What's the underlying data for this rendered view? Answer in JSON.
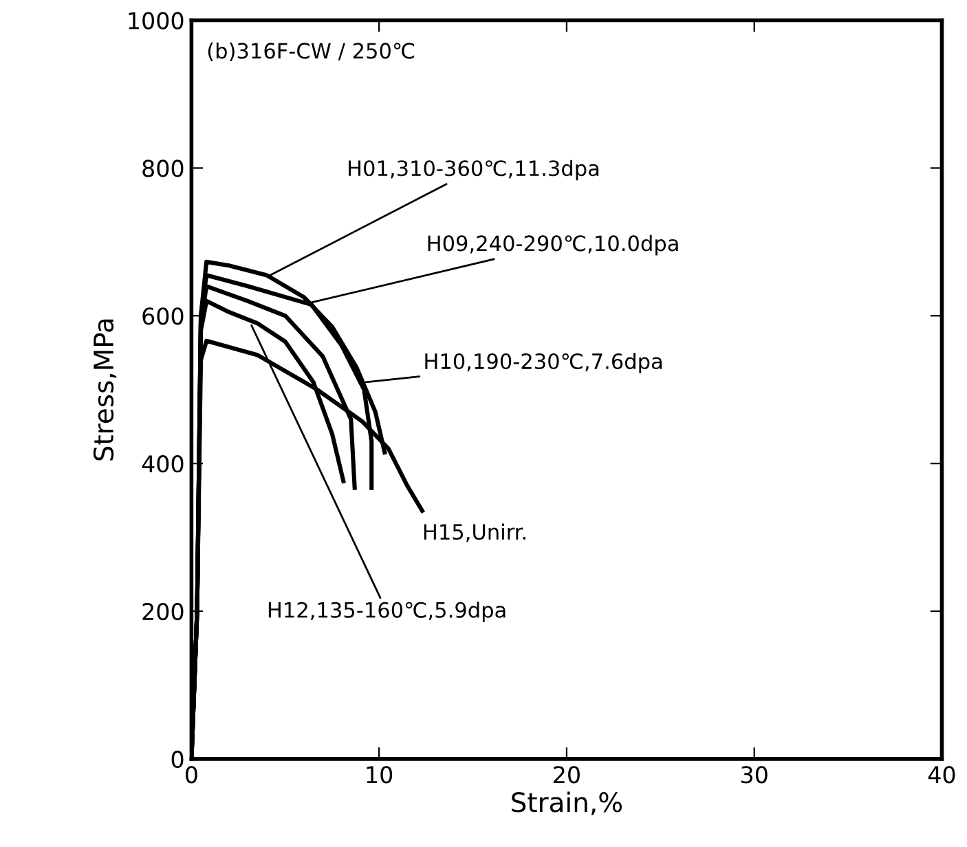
{
  "chart_data": {
    "type": "line",
    "xlabel": "Strain,%",
    "ylabel": "Stress,MPa",
    "xlim": [
      0,
      40
    ],
    "ylim": [
      0,
      1000
    ],
    "xticks": [
      0,
      10,
      20,
      30,
      40
    ],
    "yticks": [
      0,
      200,
      400,
      600,
      800,
      1000
    ],
    "grid": false,
    "legend": false,
    "marker": "none",
    "line_style": "solid",
    "series": [
      {
        "color": "#000000",
        "x": [
          0,
          0.3,
          0.5,
          0.8,
          2,
          4,
          6,
          7.5,
          8.8,
          9.8,
          10.3
        ],
        "values": [
          0,
          200,
          600,
          673,
          668,
          655,
          625,
          585,
          530,
          470,
          415
        ]
      },
      {
        "color": "#000000",
        "x": [
          0,
          0.3,
          0.5,
          0.8,
          3,
          6.4,
          8,
          9.2,
          9.6,
          9.6
        ],
        "values": [
          0,
          200,
          600,
          655,
          640,
          615,
          560,
          500,
          430,
          367
        ]
      },
      {
        "color": "#000000",
        "x": [
          0,
          0.3,
          0.5,
          0.8,
          3,
          5,
          7,
          8.5,
          8.7
        ],
        "values": [
          0,
          200,
          590,
          640,
          620,
          600,
          545,
          460,
          367
        ]
      },
      {
        "color": "#000000",
        "x": [
          0,
          0.3,
          0.5,
          0.8,
          2,
          3.5,
          5,
          6.5,
          7.5,
          8.1
        ],
        "values": [
          0,
          200,
          580,
          620,
          605,
          590,
          565,
          510,
          440,
          376
        ]
      },
      {
        "color": "#000000",
        "x": [
          0,
          0.3,
          0.5,
          0.8,
          3.5,
          6.7,
          9.1,
          10.5,
          11.5,
          12.3
        ],
        "values": [
          0,
          200,
          540,
          566,
          547,
          500,
          457,
          420,
          370,
          336
        ]
      }
    ],
    "annotations": [
      "(b)316F-CW / 250℃",
      {
        "text": "H01,310-360℃,11.3dpa",
        "x": 4.2,
        "y": 655
      },
      {
        "text": "H09,240-290℃,10.0dpa",
        "x": 6.4,
        "y": 618
      },
      {
        "text": "H10,190-230℃,7.6dpa",
        "x": 9.3,
        "y": 510
      },
      {
        "text": "H15,Unirr.",
        "x": 12.3,
        "y": 336
      },
      {
        "text": "H12,135-160℃,5.9dpa",
        "x": 3.2,
        "y": 587
      }
    ]
  }
}
